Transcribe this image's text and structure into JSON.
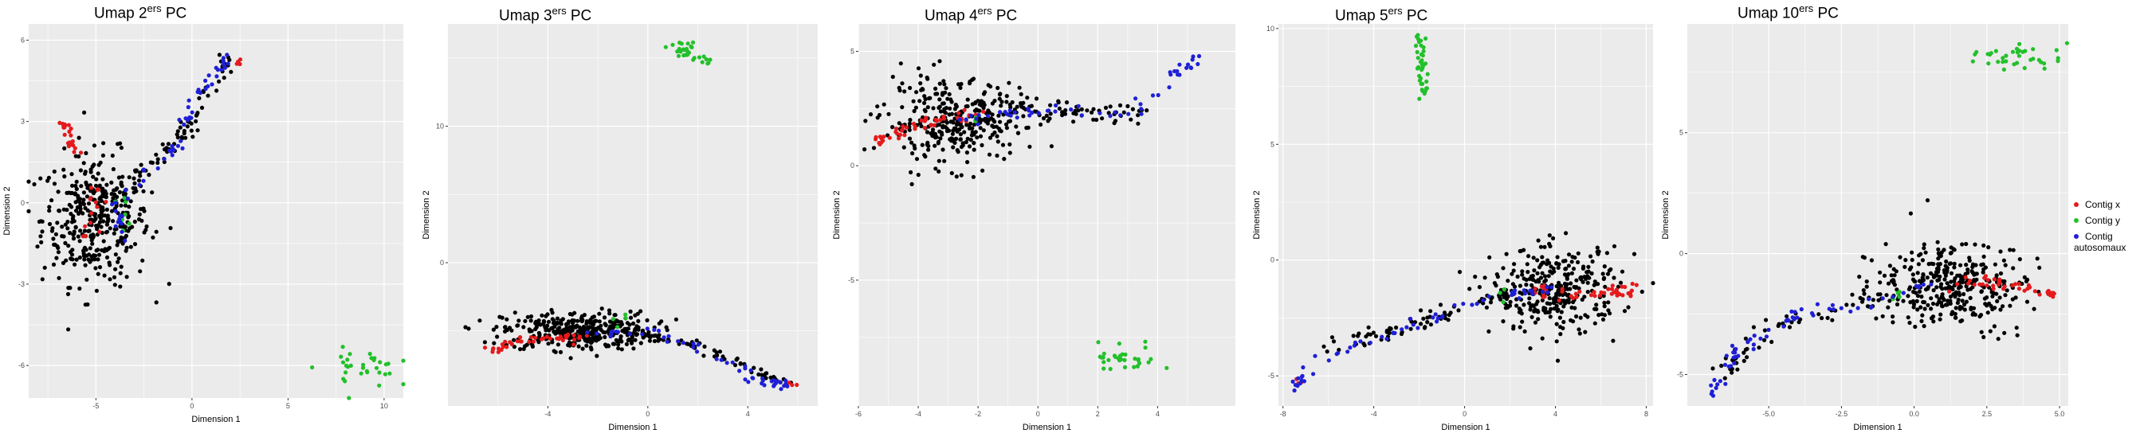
{
  "colors": {
    "panel_bg": "#ebebeb",
    "grid": "#ffffff",
    "other": "#000000",
    "x": "#e41a1c",
    "y": "#22c02a",
    "auto": "#1f1fd6"
  },
  "legend": {
    "items": [
      {
        "label": "Contig x",
        "color": "#e41a1c"
      },
      {
        "label": "Contig y",
        "color": "#22c02a"
      },
      {
        "label": "Contig",
        "label2": "autosomaux",
        "color": "#1f1fd6"
      }
    ]
  },
  "chart_data": [
    {
      "type": "scatter",
      "title_base": "Umap 2",
      "title_sup": "ers",
      "title_tail": " PC",
      "xlabel": "Dimension 1",
      "ylabel": "Dimension 2",
      "xlim": [
        -8.5,
        11
      ],
      "ylim": [
        -7.2,
        6.6
      ],
      "xticks": [
        -5,
        0,
        5,
        10
      ],
      "yticks": [
        -6,
        -3,
        0,
        3,
        6
      ],
      "clusters": [
        {
          "group": "other",
          "cx": -5,
          "cy": -0.6,
          "sx": 1.4,
          "sy": 1.2,
          "n": 380
        },
        {
          "group": "other",
          "path": [
            [
              -4,
              0.3
            ],
            [
              -1,
              2
            ],
            [
              0,
              3
            ],
            [
              2,
              5.5
            ]
          ],
          "spread": 0.35,
          "n": 70
        },
        {
          "group": "x",
          "path": [
            [
              -7,
              3.5
            ],
            [
              -6,
              1.8
            ]
          ],
          "spread": 0.2,
          "n": 22
        },
        {
          "group": "x",
          "cx": -5,
          "cy": -0.2,
          "sx": 0.4,
          "sy": 0.5,
          "n": 14
        },
        {
          "group": "x",
          "cx": 2.3,
          "cy": 5.2,
          "sx": 0.15,
          "sy": 0.15,
          "n": 4
        },
        {
          "group": "y",
          "cx": -3.6,
          "cy": -0.3,
          "sx": 0.3,
          "sy": 0.3,
          "n": 8
        },
        {
          "group": "y",
          "cx": 8.8,
          "cy": -6.1,
          "sx": 1.1,
          "sy": 0.35,
          "n": 32
        },
        {
          "group": "auto",
          "path": [
            [
              -3.5,
              -1.5
            ],
            [
              -4,
              0
            ],
            [
              -1,
              1.8
            ],
            [
              0,
              3.5
            ],
            [
              2,
              5.4
            ]
          ],
          "spread": 0.25,
          "n": 60
        }
      ]
    },
    {
      "type": "scatter",
      "title_base": "Umap 3",
      "title_sup": "ers",
      "title_tail": " PC",
      "xlabel": "Dimension 1",
      "ylabel": "Dimension 2",
      "xlim": [
        -8,
        6.8
      ],
      "ylim": [
        -10.5,
        17.5
      ],
      "xticks": [
        -4,
        0,
        4
      ],
      "yticks": [
        0,
        10
      ],
      "clusters": [
        {
          "group": "other",
          "cx": -2.8,
          "cy": -5.0,
          "sx": 1.5,
          "sy": 0.7,
          "n": 360
        },
        {
          "group": "other",
          "path": [
            [
              -1,
              -5
            ],
            [
              2,
              -6
            ],
            [
              5.5,
              -8.8
            ]
          ],
          "spread": 0.3,
          "n": 70
        },
        {
          "group": "x",
          "path": [
            [
              -6.5,
              -6.5
            ],
            [
              -4.5,
              -5.5
            ],
            [
              -2.5,
              -5.5
            ]
          ],
          "spread": 0.25,
          "n": 40
        },
        {
          "group": "x",
          "cx": 5.6,
          "cy": -8.8,
          "sx": 0.15,
          "sy": 0.12,
          "n": 5
        },
        {
          "group": "y",
          "path": [
            [
              1,
              16
            ],
            [
              2.3,
              14.5
            ]
          ],
          "spread": 0.4,
          "n": 30
        },
        {
          "group": "y",
          "cx": -1.2,
          "cy": -4,
          "sx": 0.2,
          "sy": 0.3,
          "n": 4
        },
        {
          "group": "auto",
          "path": [
            [
              -2.5,
              -5
            ],
            [
              0,
              -5
            ],
            [
              3,
              -7
            ],
            [
              4.5,
              -8.8
            ],
            [
              5.6,
              -8.9
            ]
          ],
          "spread": 0.3,
          "n": 50
        }
      ]
    },
    {
      "type": "scatter",
      "title_base": "Umap 4",
      "title_sup": "ers",
      "title_tail": " PC",
      "xlabel": "Dimension 1",
      "ylabel": "Dimension 2",
      "xlim": [
        -6,
        6.6
      ],
      "ylim": [
        -10.5,
        6.2
      ],
      "xticks": [
        -6,
        -4,
        -2,
        0,
        2,
        4
      ],
      "yticks": [
        -5,
        0,
        5
      ],
      "clusters": [
        {
          "group": "other",
          "cx": -2.8,
          "cy": 1.9,
          "sx": 1.2,
          "sy": 0.9,
          "n": 330
        },
        {
          "group": "other",
          "path": [
            [
              -1,
              2.6
            ],
            [
              2,
              2.4
            ],
            [
              3.7,
              2.2
            ]
          ],
          "spread": 0.35,
          "n": 60
        },
        {
          "group": "x",
          "path": [
            [
              -5.5,
              1
            ],
            [
              -4,
              1.8
            ],
            [
              -2,
              2.2
            ]
          ],
          "spread": 0.25,
          "n": 45
        },
        {
          "group": "y",
          "cx": 3,
          "cy": -8.4,
          "sx": 0.6,
          "sy": 0.25,
          "n": 34
        },
        {
          "group": "y",
          "cx": -2.2,
          "cy": 2.1,
          "sx": 0.2,
          "sy": 0.2,
          "n": 4
        },
        {
          "group": "auto",
          "path": [
            [
              -2.5,
              2
            ],
            [
              0,
              2.5
            ],
            [
              3,
              2.3
            ],
            [
              4.5,
              3.8
            ],
            [
              5.5,
              5
            ]
          ],
          "spread": 0.22,
          "n": 55
        }
      ]
    },
    {
      "type": "scatter",
      "title_base": "Umap 5",
      "title_sup": "ers",
      "title_tail": " PC",
      "xlabel": "Dimension 1",
      "ylabel": "Dimension 2",
      "xlim": [
        -8.2,
        8.3
      ],
      "ylim": [
        -6.3,
        10.2
      ],
      "xticks": [
        -8,
        -4,
        0,
        4,
        8
      ],
      "yticks": [
        -5,
        0,
        5,
        10
      ],
      "clusters": [
        {
          "group": "other",
          "cx": 4,
          "cy": -1.3,
          "sx": 1.4,
          "sy": 0.9,
          "n": 330
        },
        {
          "group": "other",
          "path": [
            [
              -6,
              -4
            ],
            [
              -3,
              -3
            ],
            [
              0,
              -2
            ],
            [
              2,
              -1.6
            ]
          ],
          "spread": 0.35,
          "n": 70
        },
        {
          "group": "x",
          "path": [
            [
              3,
              -1.3
            ],
            [
              5,
              -1.5
            ],
            [
              7.5,
              -1.3
            ]
          ],
          "spread": 0.25,
          "n": 45
        },
        {
          "group": "x",
          "cx": -7.2,
          "cy": -5.2,
          "sx": 0.12,
          "sy": 0.12,
          "n": 3
        },
        {
          "group": "y",
          "path": [
            [
              -2,
              9.5
            ],
            [
              -1.8,
              7.2
            ]
          ],
          "spread": 0.25,
          "n": 40
        },
        {
          "group": "y",
          "cx": 1.8,
          "cy": -1.4,
          "sx": 0.2,
          "sy": 0.2,
          "n": 4
        },
        {
          "group": "auto",
          "path": [
            [
              -7.5,
              -5.7
            ],
            [
              -6.5,
              -4.2
            ],
            [
              -4,
              -3.5
            ],
            [
              -1,
              -2.3
            ],
            [
              2,
              -1.5
            ],
            [
              4,
              -1.2
            ]
          ],
          "spread": 0.22,
          "n": 60
        }
      ]
    },
    {
      "type": "scatter",
      "title_base": "Umap 10",
      "title_sup": "ers",
      "title_tail": " PC",
      "xlabel": "Dimension 1",
      "ylabel": "Dimension 2",
      "xlim": [
        -7.8,
        5.3
      ],
      "ylim": [
        -6.3,
        9.5
      ],
      "xticks": [
        -5.0,
        -2.5,
        0.0,
        2.5,
        5.0
      ],
      "yticks": [
        -5,
        0,
        5
      ],
      "clusters": [
        {
          "group": "other",
          "cx": 1.2,
          "cy": -1.2,
          "sx": 1.3,
          "sy": 0.9,
          "n": 330
        },
        {
          "group": "other",
          "path": [
            [
              -6.5,
              -5
            ],
            [
              -5,
              -3
            ],
            [
              -2,
              -2
            ],
            [
              0,
              -1.5
            ]
          ],
          "spread": 0.35,
          "n": 70
        },
        {
          "group": "x",
          "path": [
            [
              1.5,
              -1.2
            ],
            [
              3.5,
              -1.3
            ],
            [
              5,
              -1.8
            ]
          ],
          "spread": 0.22,
          "n": 40
        },
        {
          "group": "y",
          "cx": 3.7,
          "cy": 8.1,
          "sx": 0.8,
          "sy": 0.3,
          "n": 36
        },
        {
          "group": "y",
          "cx": -0.6,
          "cy": -1.5,
          "sx": 0.2,
          "sy": 0.2,
          "n": 4
        },
        {
          "group": "auto",
          "path": [
            [
              -7,
              -5.8
            ],
            [
              -6,
              -4
            ],
            [
              -4,
              -2.5
            ],
            [
              -1.5,
              -2
            ],
            [
              0.5,
              -1.3
            ]
          ],
          "spread": 0.22,
          "n": 60
        }
      ]
    }
  ]
}
